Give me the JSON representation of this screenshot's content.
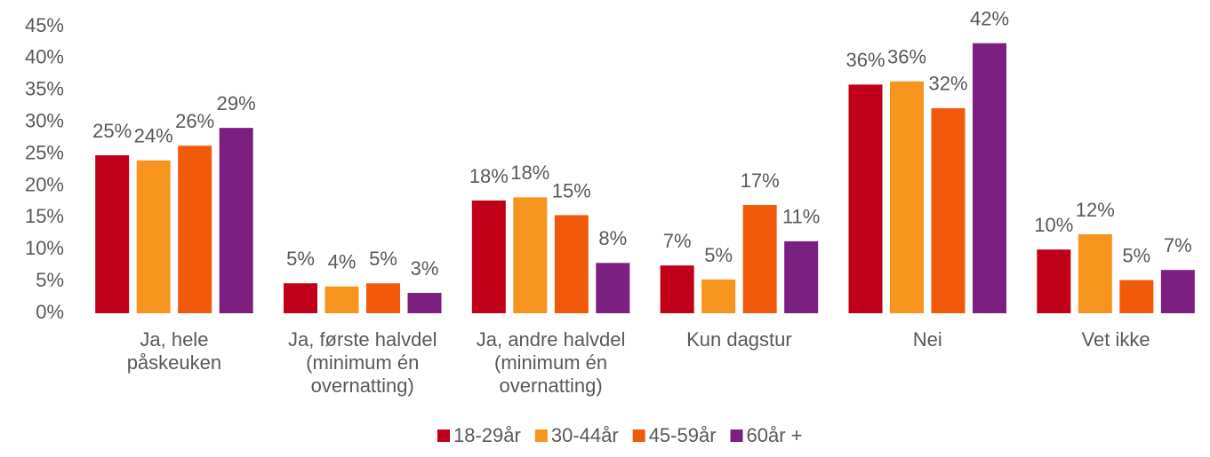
{
  "chart_data": {
    "type": "bar",
    "categories": [
      "Ja, hele\npåskeuken",
      "Ja, første halvdel\n(minimum én\novernatting)",
      "Ja, andre halvdel\n(minimum én\novernatting)",
      "Kun dagstur",
      "Nei",
      "Vet ikke"
    ],
    "series": [
      {
        "name": "18-29år",
        "color": "#c00018",
        "values": [
          24.8,
          4.7,
          17.7,
          7.5,
          35.9,
          10.0
        ],
        "value_labels": [
          "25%",
          "5%",
          "18%",
          "7%",
          "36%",
          "10%"
        ]
      },
      {
        "name": "30-44år",
        "color": "#f7941d",
        "values": [
          24.0,
          4.2,
          18.2,
          5.3,
          36.4,
          12.4
        ],
        "value_labels": [
          "24%",
          "4%",
          "18%",
          "5%",
          "36%",
          "12%"
        ]
      },
      {
        "name": "45-59år",
        "color": "#f05a0a",
        "values": [
          26.3,
          4.7,
          15.4,
          17.0,
          32.2,
          5.2
        ],
        "value_labels": [
          "26%",
          "5%",
          "15%",
          "17%",
          "32%",
          "5%"
        ]
      },
      {
        "name": "60år +",
        "color": "#7b1f80",
        "values": [
          29.1,
          3.2,
          7.9,
          11.3,
          42.4,
          6.8
        ],
        "value_labels": [
          "29%",
          "3%",
          "8%",
          "11%",
          "42%",
          "7%"
        ]
      }
    ],
    "ylim": [
      0,
      45
    ],
    "yticks": [
      {
        "value": 0,
        "label": "0%"
      },
      {
        "value": 5,
        "label": "5%"
      },
      {
        "value": 10,
        "label": "10%"
      },
      {
        "value": 15,
        "label": "15%"
      },
      {
        "value": 20,
        "label": "20%"
      },
      {
        "value": 25,
        "label": "25%"
      },
      {
        "value": 30,
        "label": "30%"
      },
      {
        "value": 35,
        "label": "35%"
      },
      {
        "value": 40,
        "label": "40%"
      },
      {
        "value": 45,
        "label": "45%"
      }
    ],
    "grid": false,
    "legend": "bottom"
  }
}
